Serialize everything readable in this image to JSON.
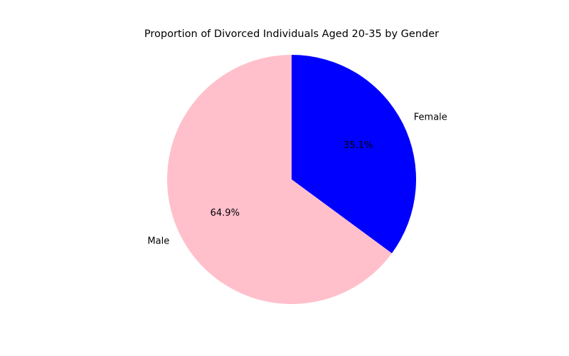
{
  "chart_data": {
    "type": "pie",
    "title": "Proportion of Divorced Individuals Aged 20-35 by Gender",
    "slices": [
      {
        "label": "Female",
        "value": 35.1,
        "pct_label": "35.1%",
        "color": "#0000ff"
      },
      {
        "label": "Male",
        "value": 64.9,
        "pct_label": "64.9%",
        "color": "#ffc0cb"
      }
    ],
    "start_angle_deg": 90,
    "direction": "clockwise",
    "legend": "none",
    "grid": false
  }
}
